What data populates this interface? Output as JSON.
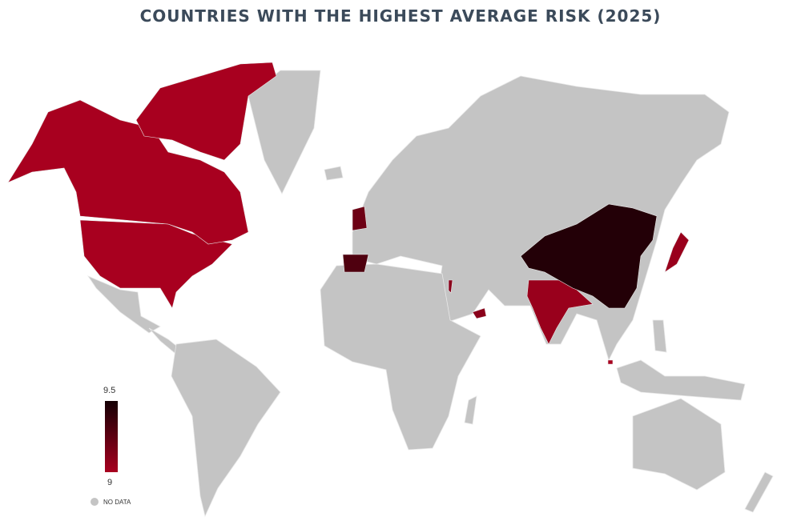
{
  "title": "COUNTRIES WITH THE HIGHEST AVERAGE RISK (2025)",
  "legend": {
    "max_label": "9.5",
    "min_label": "9",
    "no_data_label": "NO DATA",
    "color_low": "#a8001f",
    "color_high": "#140004",
    "no_data_color": "#c4c4c4"
  },
  "chart_data": {
    "type": "choropleth",
    "title": "COUNTRIES WITH THE HIGHEST AVERAGE RISK (2025)",
    "scale_range": [
      9,
      9.5
    ],
    "countries": [
      {
        "name": "United States",
        "value": 9.0
      },
      {
        "name": "Canada",
        "value": 9.0
      },
      {
        "name": "United Kingdom",
        "value": 9.2
      },
      {
        "name": "Spain",
        "value": 9.3
      },
      {
        "name": "Israel",
        "value": 9.1
      },
      {
        "name": "United Arab Emirates",
        "value": 9.1
      },
      {
        "name": "India",
        "value": 9.05
      },
      {
        "name": "China",
        "value": 9.45
      },
      {
        "name": "Japan",
        "value": 9.05
      },
      {
        "name": "Singapore",
        "value": 9.0
      }
    ]
  }
}
